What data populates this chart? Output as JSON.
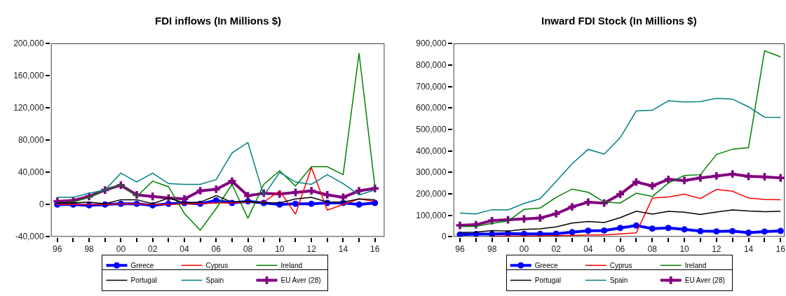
{
  "chart_data": [
    {
      "type": "line",
      "title": "FDI inflows (In Millions $)",
      "x": [
        1996,
        1997,
        1998,
        1999,
        2000,
        2001,
        2002,
        2003,
        2004,
        2005,
        2006,
        2007,
        2008,
        2009,
        2010,
        2011,
        2012,
        2013,
        2014,
        2015,
        2016
      ],
      "series": [
        {
          "name": "Greece",
          "color": "#0000ff",
          "marker": "circle",
          "values": [
            0,
            0,
            -1000,
            0,
            1000,
            1000,
            -1000,
            1000,
            2000,
            1000,
            5000,
            2000,
            4000,
            2000,
            0,
            1000,
            1000,
            2000,
            2000,
            0,
            2000
          ]
        },
        {
          "name": "Cyprus",
          "color": "#ff0000",
          "values": [
            0,
            null,
            null,
            0,
            1000,
            1000,
            0,
            0,
            1000,
            1000,
            2000,
            2000,
            3000,
            3000,
            17000,
            -12000,
            46000,
            -7000,
            0,
            7000,
            4000
          ]
        },
        {
          "name": "Ireland",
          "color": "#008000",
          "values": [
            2000,
            3000,
            9000,
            18000,
            25000,
            10000,
            29000,
            22000,
            -11000,
            -32000,
            -5000,
            25000,
            -17000,
            25000,
            42000,
            23000,
            47000,
            47000,
            37000,
            188000,
            22000
          ]
        },
        {
          "name": "Portugal",
          "color": "#000000",
          "values": [
            2000,
            2000,
            3000,
            1000,
            6000,
            6000,
            1000,
            8000,
            2000,
            3000,
            11000,
            3000,
            4000,
            2000,
            2000,
            7000,
            9000,
            3000,
            3000,
            7000,
            6000
          ]
        },
        {
          "name": "Spain",
          "color": "#008080",
          "values": [
            9000,
            9000,
            14000,
            18000,
            39000,
            28000,
            39000,
            26000,
            25000,
            25000,
            31000,
            64000,
            77000,
            11000,
            40000,
            28000,
            25000,
            37000,
            26000,
            12000,
            18000
          ]
        },
        {
          "name": "EU Aver (28)",
          "color": "#800080",
          "marker": "cross",
          "values": [
            4000,
            5000,
            10000,
            18000,
            24000,
            12000,
            10000,
            8000,
            7000,
            17000,
            19000,
            29000,
            11000,
            14000,
            13000,
            15000,
            17000,
            12000,
            9000,
            17000,
            20000
          ]
        }
      ],
      "xlim": [
        1995.6,
        2016.6
      ],
      "xticks": [
        {
          "value": 1996,
          "label": "96"
        },
        {
          "value": 1997,
          "label": null
        },
        {
          "value": 1998,
          "label": "98"
        },
        {
          "value": 1999,
          "label": null
        },
        {
          "value": 2000,
          "label": "00"
        },
        {
          "value": 2001,
          "label": null
        },
        {
          "value": 2002,
          "label": "02"
        },
        {
          "value": 2003,
          "label": null
        },
        {
          "value": 2004,
          "label": "04"
        },
        {
          "value": 2005,
          "label": null
        },
        {
          "value": 2006,
          "label": "06"
        },
        {
          "value": 2007,
          "label": null
        },
        {
          "value": 2008,
          "label": "08"
        },
        {
          "value": 2009,
          "label": null
        },
        {
          "value": 2010,
          "label": "10"
        },
        {
          "value": 2011,
          "label": null
        },
        {
          "value": 2012,
          "label": "12"
        },
        {
          "value": 2013,
          "label": null
        },
        {
          "value": 2014,
          "label": "14"
        },
        {
          "value": 2015,
          "label": null
        },
        {
          "value": 2016,
          "label": "16"
        }
      ],
      "ylim": [
        -40000,
        200000
      ],
      "yticks": [
        {
          "value": -40000,
          "label": "-40,000"
        },
        0,
        {
          "value": 40000,
          "label": "40,000"
        },
        {
          "value": 80000,
          "label": "80,000"
        },
        {
          "value": 120000,
          "label": "120,000"
        },
        {
          "value": 160000,
          "label": "160,000"
        },
        {
          "value": 200000,
          "label": "200,000"
        }
      ],
      "legend": "bottom"
    },
    {
      "type": "line",
      "title": "Inward FDI Stock (In Millions $)",
      "x": [
        1996,
        1997,
        1998,
        1999,
        2000,
        2001,
        2002,
        2003,
        2004,
        2005,
        2006,
        2007,
        2008,
        2009,
        2010,
        2011,
        2012,
        2013,
        2014,
        2015,
        2016
      ],
      "series": [
        {
          "name": "Greece",
          "color": "#0000ff",
          "marker": "circle",
          "values": [
            10000,
            12000,
            12000,
            15000,
            13000,
            13000,
            14000,
            21000,
            28000,
            29000,
            41000,
            52000,
            38000,
            41000,
            34000,
            26000,
            25000,
            26000,
            19000,
            24000,
            27000
          ]
        },
        {
          "name": "Cyprus",
          "color": "#ff0000",
          "values": [
            null,
            null,
            2000,
            3000,
            3000,
            4000,
            5000,
            6000,
            8000,
            8000,
            13000,
            18000,
            180000,
            185000,
            198000,
            178000,
            220000,
            212000,
            180000,
            174000,
            172000
          ]
        },
        {
          "name": "Ireland",
          "color": "#008000",
          "values": [
            47000,
            48000,
            62000,
            73000,
            127000,
            134000,
            183000,
            222000,
            207000,
            162000,
            157000,
            203000,
            188000,
            250000,
            285000,
            289000,
            383000,
            408000,
            415000,
            866000,
            838000
          ]
        },
        {
          "name": "Portugal",
          "color": "#000000",
          "values": [
            20000,
            21000,
            29000,
            26000,
            34000,
            37000,
            46000,
            64000,
            71000,
            66000,
            89000,
            119000,
            105000,
            118000,
            114000,
            104000,
            115000,
            125000,
            120000,
            117000,
            118000
          ]
        },
        {
          "name": "Spain",
          "color": "#008080",
          "values": [
            110000,
            106000,
            126000,
            125000,
            155000,
            177000,
            258000,
            340000,
            407000,
            385000,
            462000,
            586000,
            589000,
            633000,
            628000,
            629000,
            645000,
            641000,
            605000,
            557000,
            556000
          ]
        },
        {
          "name": "EU Aver (28)",
          "color": "#800080",
          "marker": "cross",
          "values": [
            53000,
            56000,
            75000,
            79000,
            83000,
            87000,
            107000,
            139000,
            161000,
            157000,
            198000,
            255000,
            237000,
            267000,
            262000,
            274000,
            283000,
            292000,
            281000,
            279000,
            274000
          ]
        }
      ],
      "xlim": [
        1995.6,
        2016.25
      ],
      "xticks": [
        {
          "value": 1996,
          "label": "96"
        },
        {
          "value": 1997,
          "label": null
        },
        {
          "value": 1998,
          "label": "98"
        },
        {
          "value": 1999,
          "label": null
        },
        {
          "value": 2000,
          "label": "00"
        },
        {
          "value": 2001,
          "label": null
        },
        {
          "value": 2002,
          "label": "02"
        },
        {
          "value": 2003,
          "label": null
        },
        {
          "value": 2004,
          "label": "04"
        },
        {
          "value": 2005,
          "label": null
        },
        {
          "value": 2006,
          "label": "06"
        },
        {
          "value": 2007,
          "label": null
        },
        {
          "value": 2008,
          "label": "08"
        },
        {
          "value": 2009,
          "label": null
        },
        {
          "value": 2010,
          "label": "10"
        },
        {
          "value": 2011,
          "label": null
        },
        {
          "value": 2012,
          "label": "12"
        },
        {
          "value": 2013,
          "label": null
        },
        {
          "value": 2014,
          "label": "14"
        },
        {
          "value": 2015,
          "label": null
        },
        {
          "value": 2016,
          "label": "16"
        }
      ],
      "ylim": [
        0,
        900000
      ],
      "yticks": [
        0,
        {
          "value": 100000,
          "label": "100,000"
        },
        {
          "value": 200000,
          "label": "200,000"
        },
        {
          "value": 300000,
          "label": "300,000"
        },
        {
          "value": 400000,
          "label": "400,000"
        },
        {
          "value": 500000,
          "label": "500,000"
        },
        {
          "value": 600000,
          "label": "600,000"
        },
        {
          "value": 700000,
          "label": "700,000"
        },
        {
          "value": 800000,
          "label": "800,000"
        },
        {
          "value": 900000,
          "label": "900,000"
        }
      ],
      "legend": "bottom"
    }
  ]
}
